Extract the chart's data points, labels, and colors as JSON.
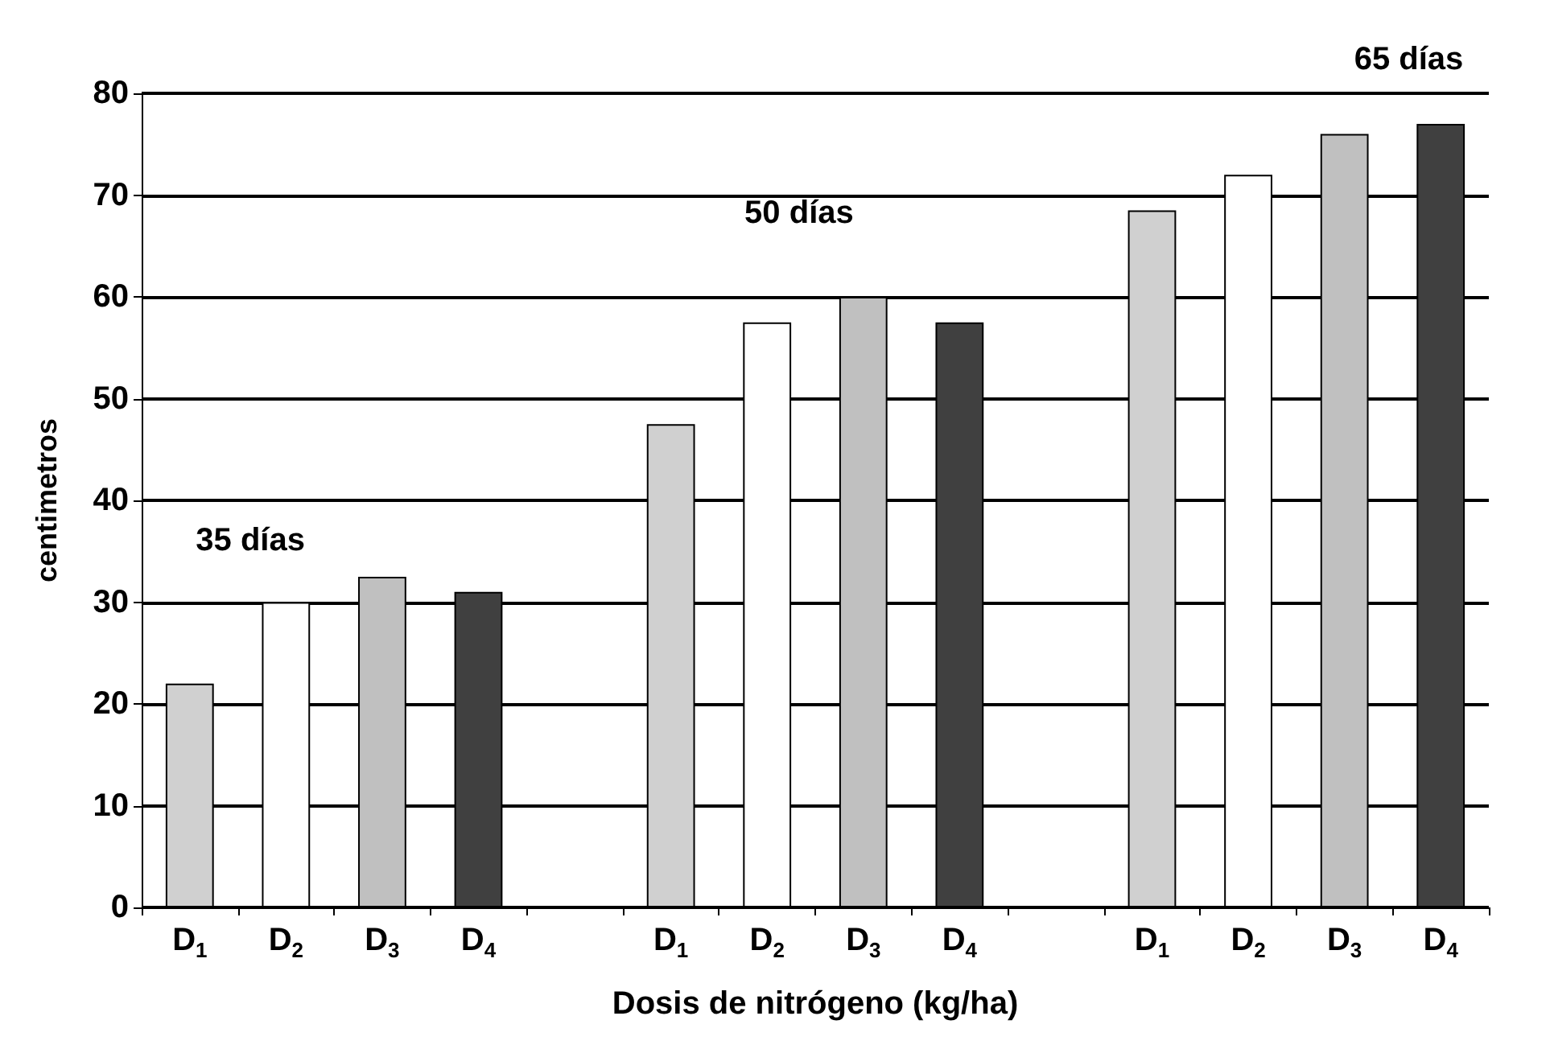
{
  "chart_data": {
    "type": "bar",
    "xlabel": "Dosis de nitrógeno (kg/ha)",
    "ylabel": "centimetros",
    "categories": [
      "D$_{1}$",
      "D$_{2}$",
      "D$_{3}$",
      "D$_{4}$",
      null,
      "D$_{1}$",
      "D$_{2}$",
      "D$_{3}$",
      "D$_{4}$",
      null,
      "D$_{1}$",
      "D$_{2}$",
      "D$_{3}$",
      "D$_{4}$"
    ],
    "values": [
      22,
      30,
      32.5,
      31,
      null,
      47.5,
      57.5,
      60,
      57.5,
      null,
      68.5,
      72,
      76,
      77
    ],
    "colors": [
      "#d0d0d0",
      "#ffffff",
      "#c0c0c0",
      "#404040",
      "#ffffff",
      "#d0d0d0",
      "#ffffff",
      "#c0c0c0",
      "#404040",
      "#ffffff",
      "#d0d0d0",
      "#ffffff",
      "#c0c0c0",
      "#404040"
    ],
    "ylim": [
      0,
      80
    ],
    "yticks": [
      0,
      10,
      20,
      30,
      40,
      50,
      60,
      70,
      80
    ],
    "grid": "y",
    "annotations": [
      "35 días",
      "50 días",
      "65 días"
    ]
  }
}
